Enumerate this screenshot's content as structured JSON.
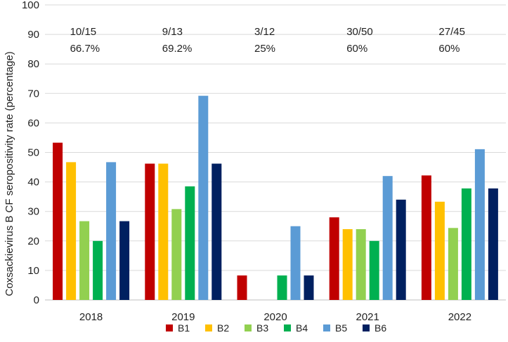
{
  "chart_data": {
    "type": "bar",
    "title": "",
    "xlabel": "",
    "ylabel": "Coxsackievirus B CF seropositivity rate (percentage)",
    "ylim": [
      0,
      100
    ],
    "yticks": [
      0,
      10,
      20,
      30,
      40,
      50,
      60,
      70,
      80,
      90,
      100
    ],
    "categories": [
      "2018",
      "2019",
      "2020",
      "2021",
      "2022"
    ],
    "series": [
      {
        "name": "B1",
        "color": "#c00000",
        "values": [
          53.3,
          46.2,
          8.3,
          28,
          42.2
        ]
      },
      {
        "name": "B2",
        "color": "#ffc000",
        "values": [
          46.7,
          46.2,
          0,
          24,
          33.3
        ]
      },
      {
        "name": "B3",
        "color": "#92d050",
        "values": [
          26.7,
          30.8,
          0,
          24,
          24.4
        ]
      },
      {
        "name": "B4",
        "color": "#00b050",
        "values": [
          20,
          38.5,
          8.3,
          20,
          37.8
        ]
      },
      {
        "name": "B5",
        "color": "#5b9bd5",
        "values": [
          46.7,
          69.2,
          25,
          42,
          51.1
        ]
      },
      {
        "name": "B6",
        "color": "#002060",
        "values": [
          26.7,
          46.2,
          8.3,
          34,
          37.8
        ]
      }
    ],
    "annotations": [
      {
        "ratio": "10/15",
        "percent": "66.7%"
      },
      {
        "ratio": "9/13",
        "percent": "69.2%"
      },
      {
        "ratio": "3/12",
        "percent": "25%"
      },
      {
        "ratio": "30/50",
        "percent": "60%"
      },
      {
        "ratio": "27/45",
        "percent": "60%"
      }
    ],
    "legend_position": "bottom",
    "grid": true
  }
}
